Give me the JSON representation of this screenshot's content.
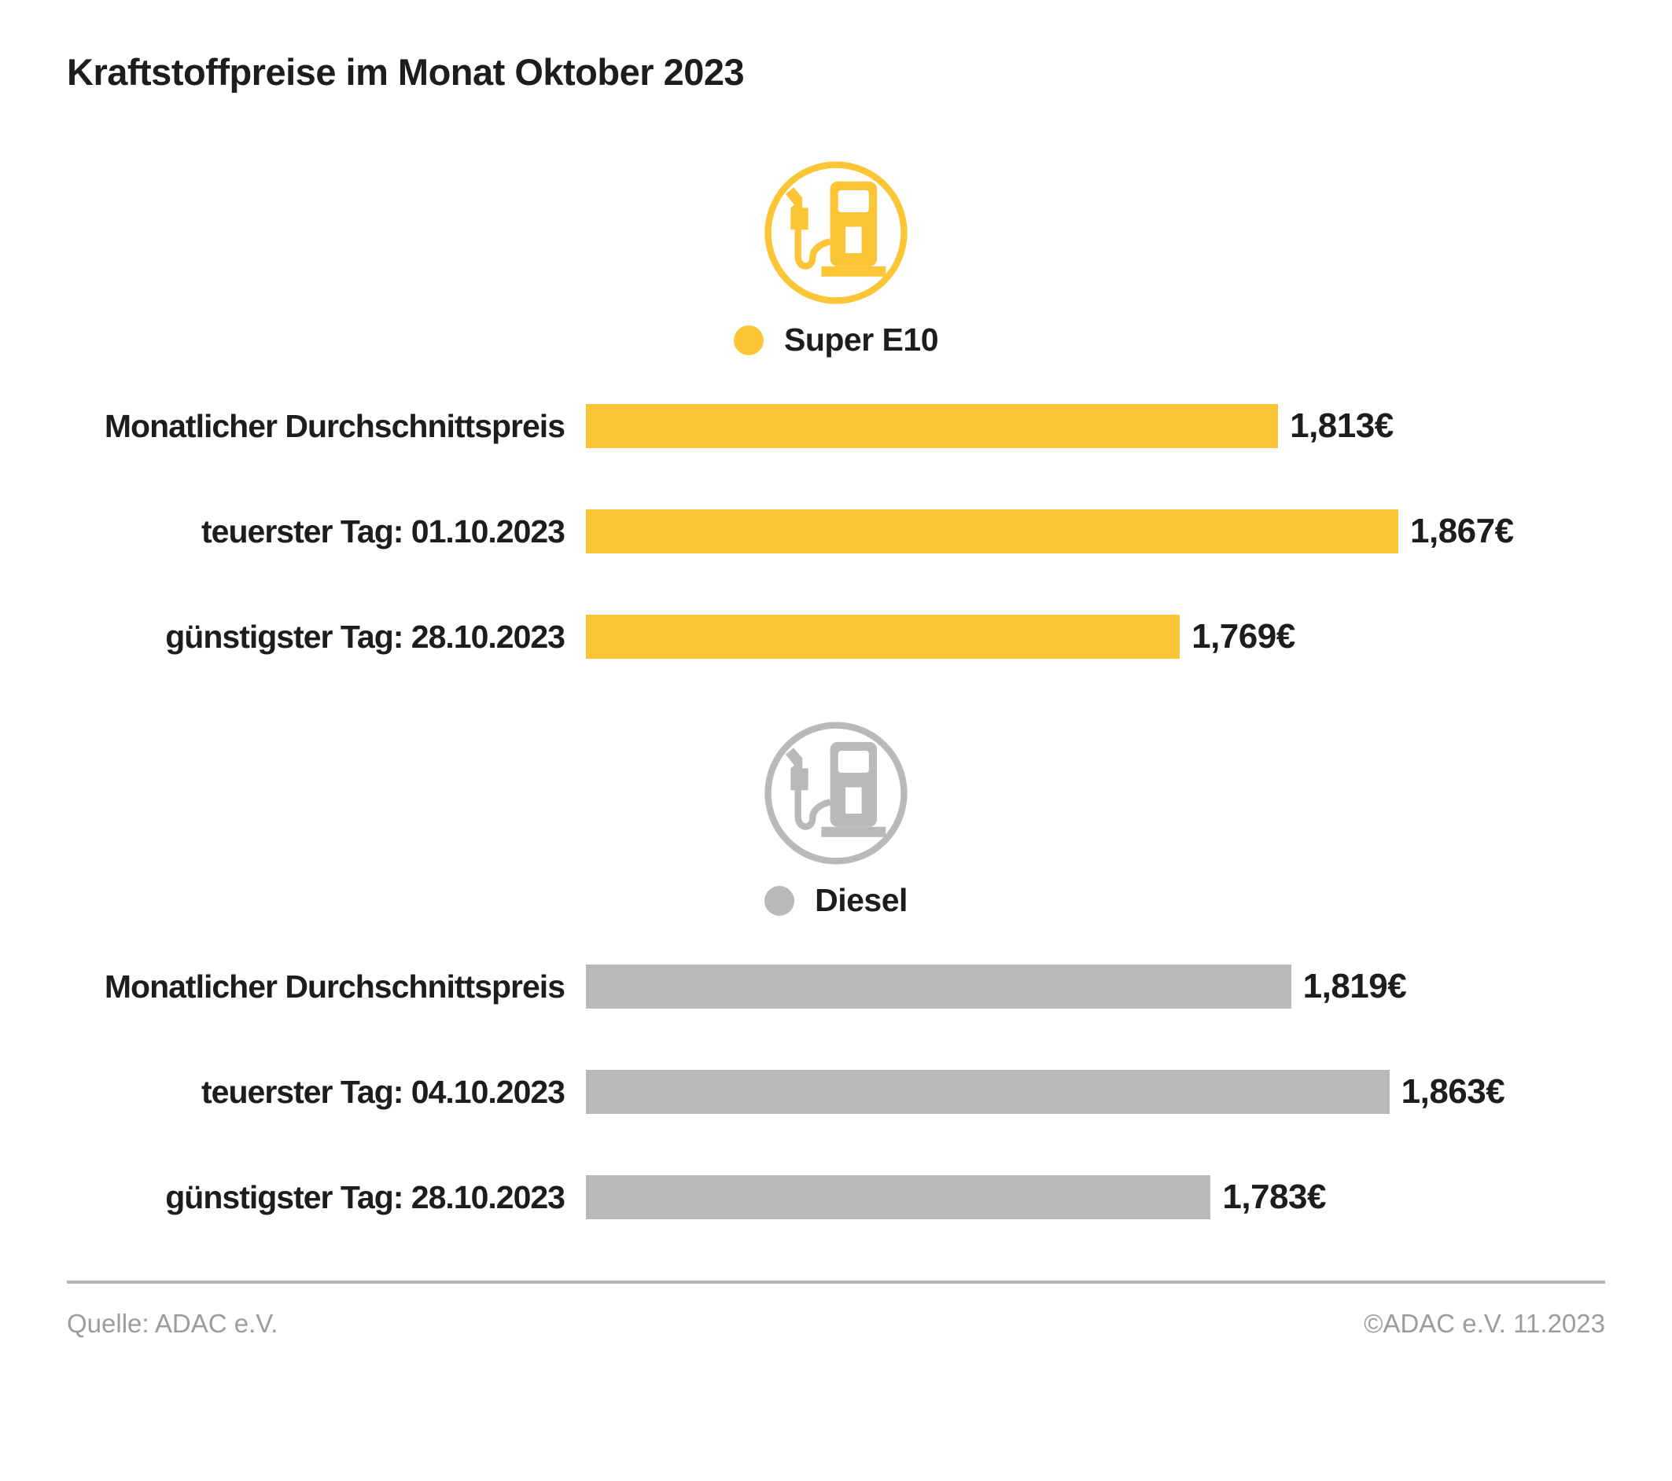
{
  "title": "Kraftstoffpreise im Monat Oktober 2023",
  "colors": {
    "e10_yellow": "#FBC535",
    "diesel_gray": "#B9B9B9",
    "text_dark": "#1D1D1B",
    "footer_text": "#9C9C9C",
    "divider": "#B4B4B4"
  },
  "chart_data": [
    {
      "type": "bar",
      "series_name": "Super E10",
      "icon": "fuel-pump-icon",
      "color": "#FBC535",
      "categories": [
        "Monatlicher Durchschnittspreis",
        "teuerster Tag: 01.10.2023",
        "günstigster Tag: 28.10.2023"
      ],
      "values": [
        1.813,
        1.867,
        1.769
      ],
      "value_labels": [
        "1,813€",
        "1,867€",
        "1,769€"
      ],
      "legend_position": "top-center",
      "grid": false
    },
    {
      "type": "bar",
      "series_name": "Diesel",
      "icon": "fuel-pump-icon",
      "color": "#B9B9B9",
      "categories": [
        "Monatlicher Durchschnittspreis",
        "teuerster Tag: 04.10.2023",
        "günstigster Tag: 28.10.2023"
      ],
      "values": [
        1.819,
        1.863,
        1.783
      ],
      "value_labels": [
        "1,819€",
        "1,863€",
        "1,783€"
      ],
      "legend_position": "top-center",
      "grid": false
    }
  ],
  "layout": {
    "bar_scale": {
      "zero_at": 1.503,
      "full_at": 1.867
    }
  },
  "footer": {
    "source": "Quelle: ADAC e.V.",
    "copyright": "©ADAC e.V. 11.2023"
  }
}
